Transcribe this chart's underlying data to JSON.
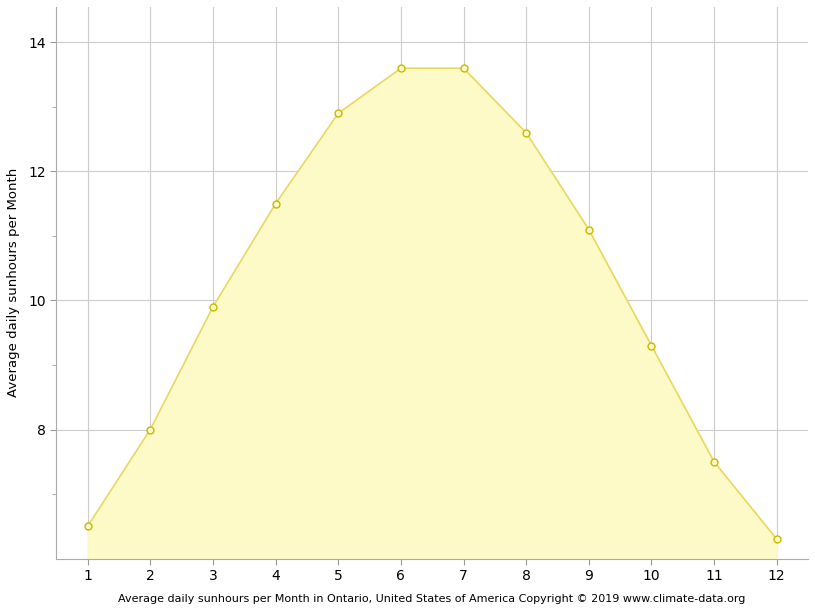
{
  "months": [
    1,
    2,
    3,
    4,
    5,
    6,
    7,
    8,
    9,
    10,
    11,
    12
  ],
  "sunhours": [
    6.5,
    8.0,
    9.9,
    11.5,
    12.9,
    13.6,
    13.6,
    12.6,
    11.1,
    9.3,
    7.5,
    6.3
  ],
  "fill_color": "#FDFAC8",
  "line_color": "#E8D860",
  "marker_facecolor": "#FDFAC8",
  "marker_edgecolor": "#C8B800",
  "ylabel": "Average daily sunhours per Month",
  "xlabel": "Average daily sunhours per Month in Ontario, United States of America Copyright © 2019 www.climate-data.org",
  "ylim_bottom": 6.0,
  "ylim_top": 14.55,
  "xlim": [
    0.5,
    12.5
  ],
  "yticks": [
    8,
    10,
    12,
    14
  ],
  "yticks_minor": [
    7,
    9,
    11,
    13
  ],
  "xticks": [
    1,
    2,
    3,
    4,
    5,
    6,
    7,
    8,
    9,
    10,
    11,
    12
  ],
  "grid_color": "#cccccc",
  "background_color": "#ffffff",
  "fig_background": "#ffffff",
  "fill_bottom": 6.1
}
